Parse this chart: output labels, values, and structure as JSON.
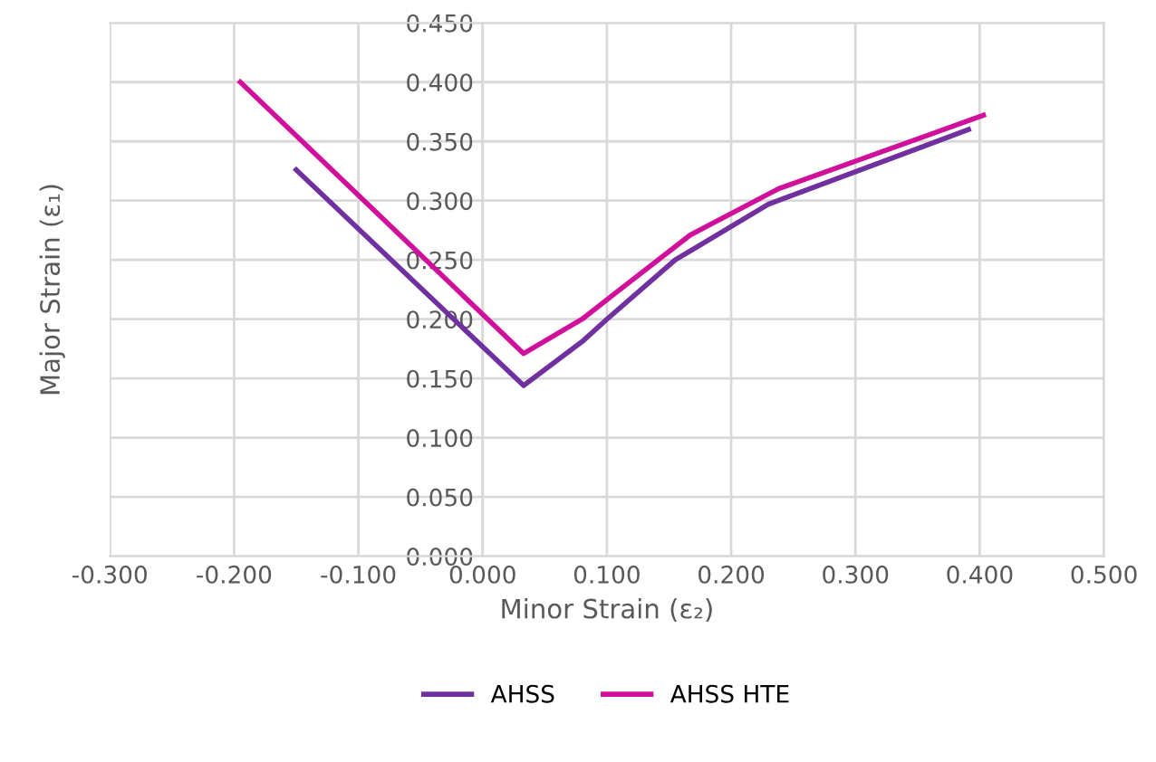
{
  "chart_data": {
    "type": "line",
    "xlabel": "Minor Strain (ε₂)",
    "ylabel": "Major Strain (ε₁)",
    "xlim": [
      -0.3,
      0.5
    ],
    "xticks": [
      {
        "value": -0.3,
        "label": "-0.300"
      },
      {
        "value": -0.2,
        "label": "-0.200"
      },
      {
        "value": -0.1,
        "label": "-0.100"
      },
      {
        "value": 0,
        "label": "0.000"
      },
      {
        "value": 0.1,
        "label": "0.100"
      },
      {
        "value": 0.2,
        "label": "0.200"
      },
      {
        "value": 0.3,
        "label": "0.300"
      },
      {
        "value": 0.4,
        "label": "0.400"
      },
      {
        "value": 0.5,
        "label": "0.500"
      }
    ],
    "ylim": [
      0,
      0.45
    ],
    "yticks": [
      {
        "value": 0,
        "label": "0.000"
      },
      {
        "value": 0.05,
        "label": "0.050"
      },
      {
        "value": 0.1,
        "label": "0.100"
      },
      {
        "value": 0.15,
        "label": "0.150"
      },
      {
        "value": 0.2,
        "label": "0.200"
      },
      {
        "value": 0.25,
        "label": "0.250"
      },
      {
        "value": 0.3,
        "label": "0.300"
      },
      {
        "value": 0.35,
        "label": "0.350"
      },
      {
        "value": 0.4,
        "label": "0.400"
      },
      {
        "value": 0.45,
        "label": "0.450"
      }
    ],
    "grid": true,
    "legend": "bottom",
    "marker": "none",
    "series": [
      {
        "name": "AHSS",
        "color": "#7030a0",
        "x": [
          -0.15,
          0.033,
          0.08,
          0.1,
          0.155,
          0.23,
          0.391
        ],
        "values": [
          0.326,
          0.144,
          0.181,
          0.2,
          0.25,
          0.297,
          0.36
        ]
      },
      {
        "name": "AHSS HTE",
        "color": "#d0109a",
        "x": [
          -0.195,
          0.033,
          0.08,
          0.108,
          0.167,
          0.238,
          0.403
        ],
        "values": [
          0.4,
          0.171,
          0.2,
          0.223,
          0.271,
          0.31,
          0.372
        ]
      }
    ]
  }
}
